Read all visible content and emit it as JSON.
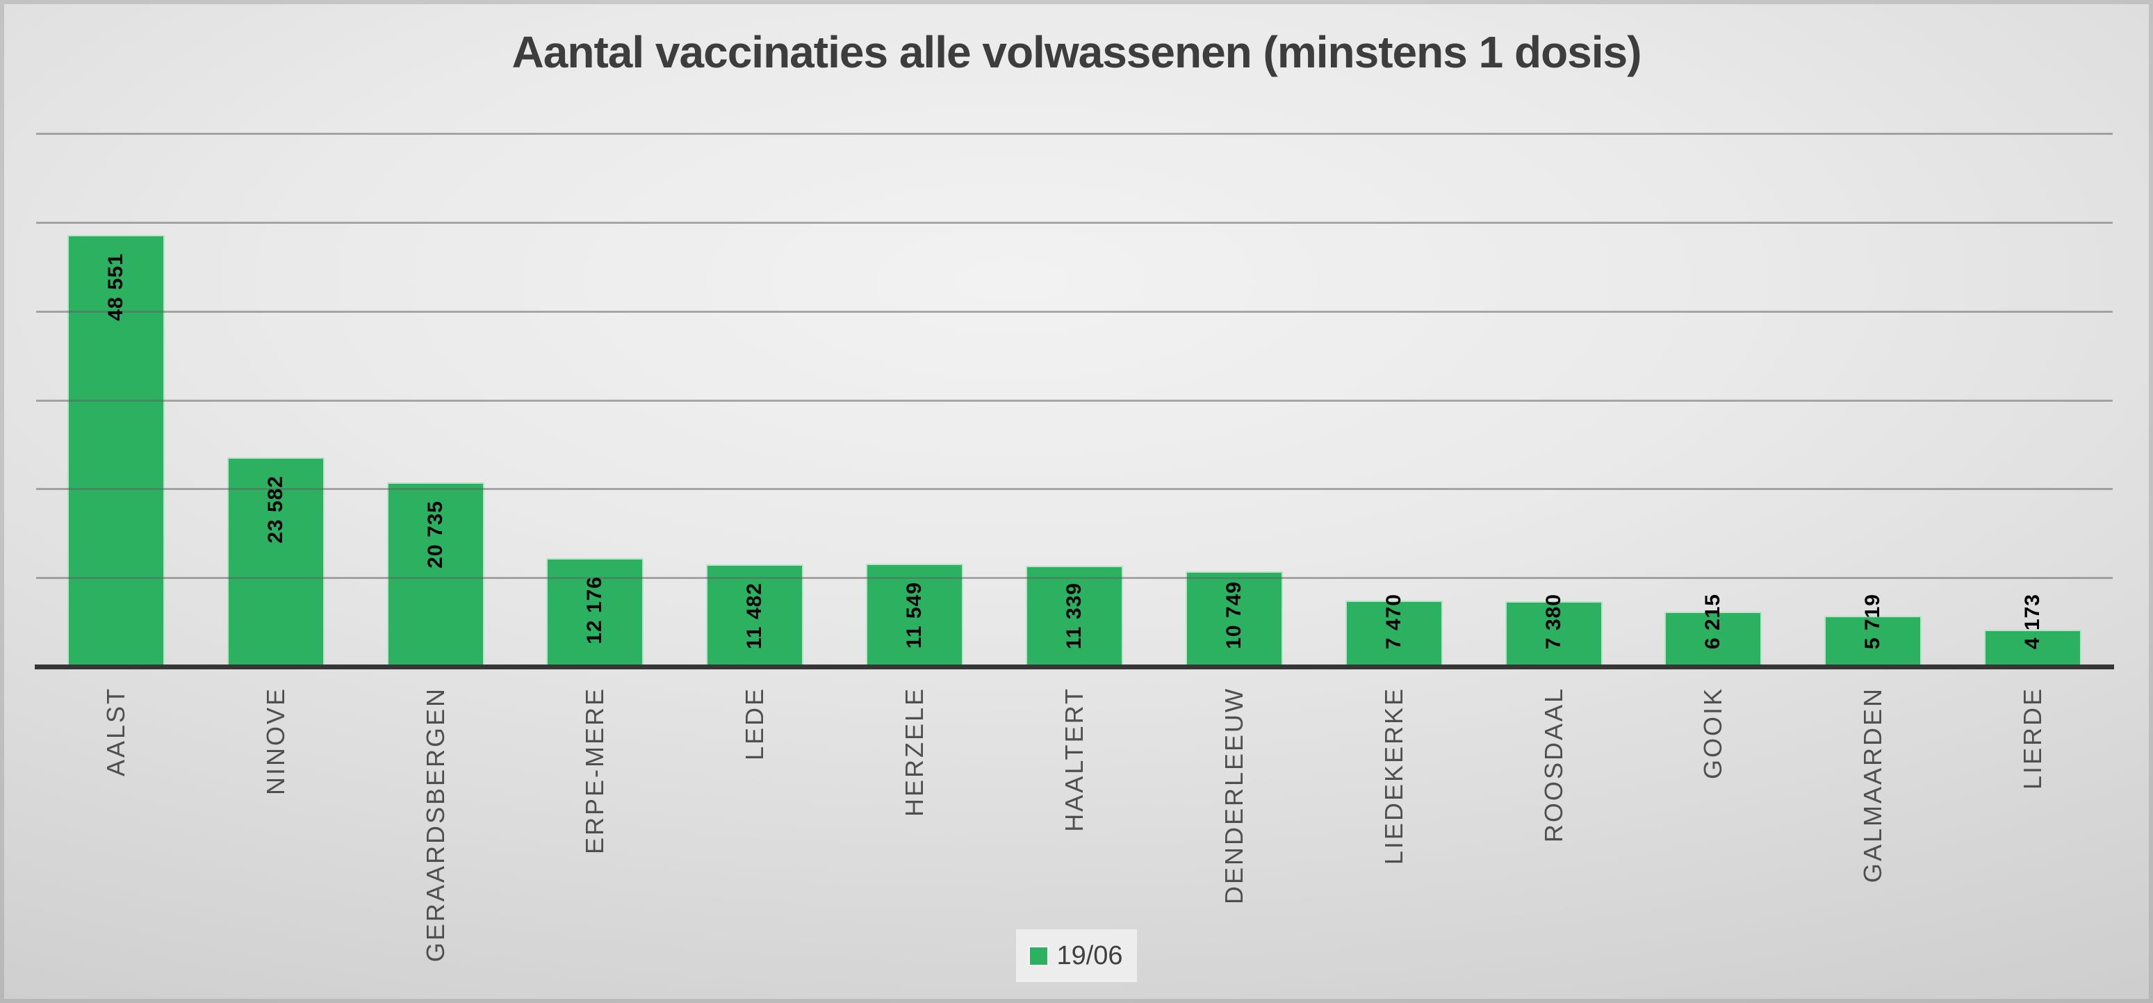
{
  "chart_data": {
    "type": "bar",
    "title": "Aantal vaccinaties alle volwassenen (minstens 1 dosis)",
    "categories": [
      "AALST",
      "NINOVE",
      "GERAARDSBERGEN",
      "ERPE-MERE",
      "LEDE",
      "HERZELE",
      "HAALTERT",
      "DENDERLEEUW",
      "LIEDEKERKE",
      "ROOSDAAL",
      "GOOIK",
      "GALMAARDEN",
      "LIERDE"
    ],
    "series": [
      {
        "name": "19/06",
        "values": [
          48551,
          23582,
          20735,
          12176,
          11482,
          11549,
          11339,
          10749,
          7470,
          7380,
          6215,
          5719,
          4173
        ]
      }
    ],
    "value_labels": [
      "48 551",
      "23 582",
      "20 735",
      "12 176",
      "11 482",
      "11 549",
      "11 339",
      "10 749",
      "7 470",
      "7 380",
      "6 215",
      "5 719",
      "4 173"
    ],
    "xlabel": "",
    "ylabel": "",
    "ylim": [
      0,
      60000
    ],
    "gridline_step": 10000,
    "grid": true,
    "legend_position": "bottom-center",
    "bar_orientation": "vertical",
    "data_label_rotation_deg": 90,
    "category_label_rotation_deg": 90
  },
  "colors": {
    "bar_fill": "#2cb161",
    "bar_border": "#ffffff",
    "gridline": "#a4a4a4",
    "axis_line": "#363636",
    "title_text": "#3d3d3d",
    "category_text": "#4f4f4f",
    "value_text": "#000000",
    "legend_bg": "#ededed",
    "legend_text": "#404040"
  }
}
